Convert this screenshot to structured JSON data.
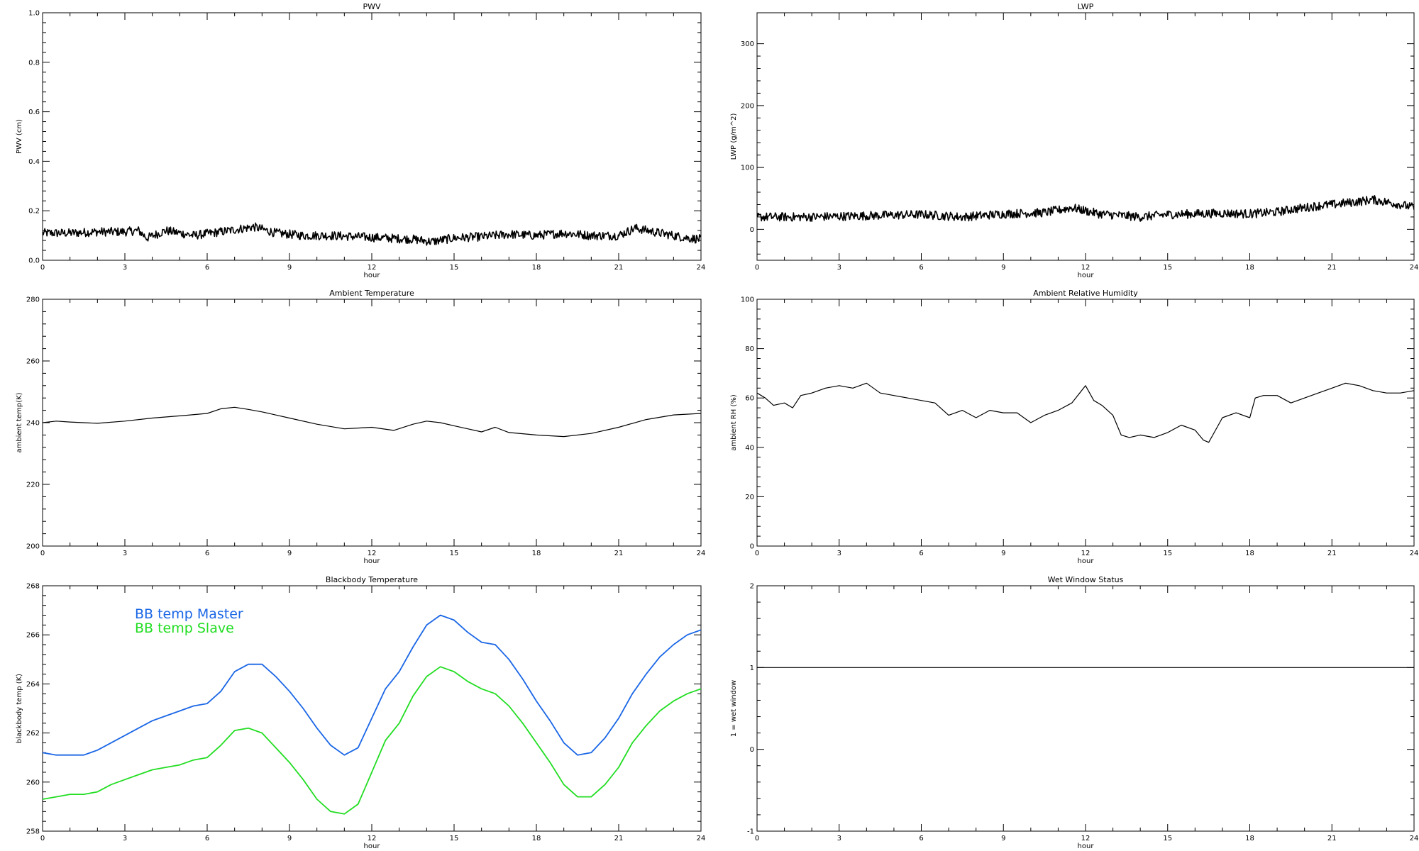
{
  "chart_data": [
    {
      "type": "line",
      "title": "PWV",
      "xlabel": "hour",
      "ylabel": "PWV (cm)",
      "xlim": [
        0,
        24
      ],
      "ylim": [
        0.0,
        1.0
      ],
      "xticks": [
        "0",
        "3",
        "6",
        "9",
        "12",
        "15",
        "18",
        "21",
        "24"
      ],
      "yticks": [
        "0.0",
        "0.2",
        "0.4",
        "0.6",
        "0.8",
        "1.0"
      ],
      "noisy": true,
      "series": [
        {
          "color": "#000000",
          "x": [
            0,
            1,
            2,
            3,
            3.5,
            3.8,
            4.5,
            5.5,
            6.5,
            7.7,
            8.5,
            9.5,
            10.5,
            11.5,
            12.5,
            13.5,
            14.2,
            15,
            16,
            17,
            18,
            19,
            20,
            21,
            21.6,
            22.5,
            23.5,
            24
          ],
          "y": [
            0.11,
            0.11,
            0.115,
            0.115,
            0.12,
            0.09,
            0.12,
            0.1,
            0.115,
            0.135,
            0.11,
            0.1,
            0.1,
            0.095,
            0.09,
            0.085,
            0.075,
            0.09,
            0.095,
            0.105,
            0.1,
            0.11,
            0.1,
            0.1,
            0.13,
            0.11,
            0.09,
            0.085
          ]
        }
      ]
    },
    {
      "type": "line",
      "title": "LWP",
      "xlabel": "hour",
      "ylabel": "LWP (g/m^2)",
      "xlim": [
        0,
        24
      ],
      "ylim": [
        -50,
        350
      ],
      "xticks": [
        "0",
        "3",
        "6",
        "9",
        "12",
        "15",
        "18",
        "21",
        "24"
      ],
      "yticks": [
        "0",
        "100",
        "200",
        "300"
      ],
      "noisy": true,
      "series": [
        {
          "color": "#000000",
          "x": [
            0,
            2,
            4,
            6,
            7.5,
            9,
            10.5,
            11.5,
            12.5,
            14,
            15,
            16,
            17,
            18,
            19,
            19.5,
            20.5,
            21,
            22,
            22.5,
            23.5,
            24
          ],
          "y": [
            20,
            20,
            22,
            24,
            20,
            25,
            27,
            35,
            25,
            20,
            24,
            25,
            26,
            25,
            28,
            32,
            38,
            40,
            45,
            48,
            40,
            35
          ]
        }
      ]
    },
    {
      "type": "line",
      "title": "Ambient Temperature",
      "xlabel": "hour",
      "ylabel": "ambient temp(K)",
      "xlim": [
        0,
        24
      ],
      "ylim": [
        200,
        280
      ],
      "xticks": [
        "0",
        "3",
        "6",
        "9",
        "12",
        "15",
        "18",
        "21",
        "24"
      ],
      "yticks": [
        "200",
        "220",
        "240",
        "260",
        "280"
      ],
      "noisy": false,
      "series": [
        {
          "color": "#000000",
          "x": [
            0,
            0.5,
            1,
            2,
            3,
            4,
            5,
            6,
            6.5,
            7,
            7.5,
            8,
            9,
            10,
            11,
            12,
            12.8,
            13.5,
            14,
            14.5,
            15,
            15.5,
            16,
            16.5,
            17,
            18,
            19,
            20,
            21,
            22,
            23,
            24
          ],
          "y": [
            240,
            240.5,
            240.2,
            239.8,
            240.5,
            241.5,
            242.2,
            243,
            244.5,
            245,
            244.3,
            243.5,
            241.5,
            239.5,
            238,
            238.5,
            237.5,
            239.5,
            240.5,
            240,
            239,
            238,
            237,
            238.5,
            236.8,
            236,
            235.5,
            236.5,
            238.5,
            241,
            242.5,
            243
          ]
        }
      ]
    },
    {
      "type": "line",
      "title": "Ambient Relative Humidity",
      "xlabel": "hour",
      "ylabel": "ambient RH (%)",
      "xlim": [
        0,
        24
      ],
      "ylim": [
        0,
        100
      ],
      "xticks": [
        "0",
        "3",
        "6",
        "9",
        "12",
        "15",
        "18",
        "21",
        "24"
      ],
      "yticks": [
        "0",
        "20",
        "40",
        "60",
        "80",
        "100"
      ],
      "noisy": false,
      "series": [
        {
          "color": "#000000",
          "x": [
            0,
            0.3,
            0.6,
            1,
            1.3,
            1.6,
            2,
            2.5,
            3,
            3.5,
            4,
            4.5,
            5,
            5.5,
            6,
            6.5,
            7,
            7.5,
            8,
            8.5,
            9,
            9.5,
            10,
            10.5,
            11,
            11.5,
            12,
            12.3,
            12.6,
            13,
            13.3,
            13.6,
            14,
            14.5,
            15,
            15.5,
            16,
            16.3,
            16.5,
            16.8,
            17,
            17.5,
            18,
            18.2,
            18.5,
            19,
            19.5,
            20,
            20.5,
            21,
            21.5,
            22,
            22.5,
            23,
            23.5,
            24
          ],
          "y": [
            62,
            60,
            57,
            58,
            56,
            61,
            62,
            64,
            65,
            64,
            66,
            62,
            61,
            60,
            59,
            58,
            53,
            55,
            52,
            55,
            54,
            54,
            50,
            53,
            55,
            58,
            65,
            59,
            57,
            53,
            45,
            44,
            45,
            44,
            46,
            49,
            47,
            43,
            42,
            48,
            52,
            54,
            52,
            60,
            61,
            61,
            58,
            60,
            62,
            64,
            66,
            65,
            63,
            62,
            62,
            63
          ]
        }
      ]
    },
    {
      "type": "line",
      "title": "Blackbody Temperature",
      "xlabel": "hour",
      "ylabel": "blackbody temp (K)",
      "xlim": [
        0,
        24
      ],
      "ylim": [
        258,
        268
      ],
      "xticks": [
        "0",
        "3",
        "6",
        "9",
        "12",
        "15",
        "18",
        "21",
        "24"
      ],
      "yticks": [
        "258",
        "260",
        "262",
        "264",
        "266",
        "268"
      ],
      "noisy": false,
      "legend_position": "upper-left",
      "series": [
        {
          "name": "BB temp Master",
          "color": "#1a66e6",
          "x": [
            0,
            0.5,
            1,
            1.5,
            2,
            2.5,
            3,
            3.5,
            4,
            4.5,
            5,
            5.5,
            6,
            6.5,
            7,
            7.5,
            8,
            8.5,
            9,
            9.5,
            10,
            10.5,
            11,
            11.5,
            12,
            12.5,
            13,
            13.5,
            14,
            14.5,
            15,
            15.5,
            16,
            16.5,
            17,
            17.5,
            18,
            18.5,
            19,
            19.5,
            20,
            20.5,
            21,
            21.5,
            22,
            22.5,
            23,
            23.5,
            24
          ],
          "y": [
            261.2,
            261.1,
            261.1,
            261.1,
            261.3,
            261.6,
            261.9,
            262.2,
            262.5,
            262.7,
            262.9,
            263.1,
            263.2,
            263.7,
            264.5,
            264.8,
            264.8,
            264.3,
            263.7,
            263,
            262.2,
            261.5,
            261.1,
            261.4,
            262.6,
            263.8,
            264.5,
            265.5,
            266.4,
            266.8,
            266.6,
            266.1,
            265.7,
            265.6,
            265,
            264.2,
            263.3,
            262.5,
            261.6,
            261.1,
            261.2,
            261.8,
            262.6,
            263.6,
            264.4,
            265.1,
            265.6,
            266.0,
            266.2
          ]
        },
        {
          "name": "BB temp Slave",
          "color": "#22dd22",
          "x": [
            0,
            0.5,
            1,
            1.5,
            2,
            2.5,
            3,
            3.5,
            4,
            4.5,
            5,
            5.5,
            6,
            6.5,
            7,
            7.5,
            8,
            8.5,
            9,
            9.5,
            10,
            10.5,
            11,
            11.5,
            12,
            12.5,
            13,
            13.5,
            14,
            14.5,
            15,
            15.5,
            16,
            16.5,
            17,
            17.5,
            18,
            18.5,
            19,
            19.5,
            20,
            20.5,
            21,
            21.5,
            22,
            22.5,
            23,
            23.5,
            24
          ],
          "y": [
            259.3,
            259.4,
            259.5,
            259.5,
            259.6,
            259.9,
            260.1,
            260.3,
            260.5,
            260.6,
            260.7,
            260.9,
            261,
            261.5,
            262.1,
            262.2,
            262,
            261.4,
            260.8,
            260.1,
            259.3,
            258.8,
            258.7,
            259.1,
            260.4,
            261.7,
            262.4,
            263.5,
            264.3,
            264.7,
            264.5,
            264.1,
            263.8,
            263.6,
            263.1,
            262.4,
            261.6,
            260.8,
            259.9,
            259.4,
            259.4,
            259.9,
            260.6,
            261.6,
            262.3,
            262.9,
            263.3,
            263.6,
            263.8
          ]
        }
      ]
    },
    {
      "type": "line",
      "title": "Wet Window Status",
      "xlabel": "hour",
      "ylabel": "1 = wet window",
      "xlim": [
        0,
        24
      ],
      "ylim": [
        -1,
        2
      ],
      "xticks": [
        "0",
        "3",
        "6",
        "9",
        "12",
        "15",
        "18",
        "21",
        "24"
      ],
      "yticks": [
        "-1",
        "0",
        "1",
        "2"
      ],
      "noisy": false,
      "series": [
        {
          "color": "#000000",
          "x": [
            0,
            24
          ],
          "y": [
            1,
            1
          ]
        }
      ]
    }
  ]
}
